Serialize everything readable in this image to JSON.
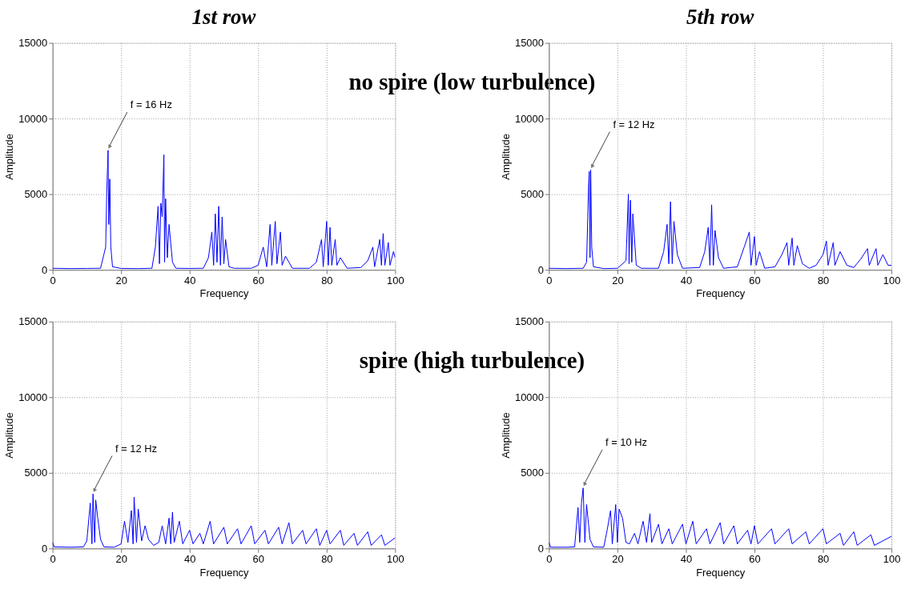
{
  "chart_data": [
    {
      "type": "line",
      "title": "1st row",
      "xlabel": "Frequency",
      "ylabel": "Amplitude",
      "xlim": [
        0,
        100
      ],
      "xticks": [
        0,
        20,
        40,
        60,
        80,
        100
      ],
      "ylim": [
        0,
        15000
      ],
      "yticks": [
        0,
        5000,
        10000,
        15000
      ],
      "grid": true,
      "annotations": [
        "no spire (low turbulence)",
        {
          "text": "f = 16 Hz",
          "x": 16.2,
          "y": 7900
        }
      ],
      "series": [
        {
          "color": "#0000ff",
          "x": [
            0,
            5,
            10,
            14,
            15.5,
            15.8,
            16,
            16.2,
            16.4,
            16.7,
            17,
            17.5,
            20,
            25,
            29,
            30,
            30.8,
            31.2,
            31.6,
            32,
            32.5,
            32.7,
            33,
            33.5,
            34,
            35,
            36,
            40,
            44,
            45.5,
            46.5,
            47,
            47.5,
            48,
            48.5,
            49,
            49.5,
            50,
            50.5,
            51.5,
            53,
            58,
            60,
            61.5,
            62.5,
            63.5,
            64,
            65,
            65.5,
            66.5,
            67,
            68,
            70,
            75,
            77,
            78.5,
            79,
            80,
            80.5,
            81,
            81.5,
            82.5,
            83,
            84,
            86,
            90,
            92,
            93.5,
            94,
            95.5,
            96,
            96.5,
            97,
            98,
            98.5,
            99.5,
            100
          ],
          "values": [
            100,
            80,
            90,
            100,
            1500,
            5000,
            6500,
            7900,
            3000,
            6000,
            1500,
            200,
            90,
            80,
            100,
            1500,
            4200,
            400,
            4400,
            3500,
            7600,
            500,
            4700,
            800,
            3000,
            500,
            100,
            90,
            100,
            800,
            2500,
            300,
            3700,
            500,
            4200,
            300,
            3500,
            400,
            2000,
            200,
            100,
            100,
            300,
            1500,
            200,
            3000,
            300,
            3200,
            400,
            2500,
            300,
            900,
            100,
            100,
            500,
            2000,
            200,
            3200,
            300,
            2800,
            300,
            2000,
            300,
            800,
            100,
            150,
            600,
            1500,
            200,
            2000,
            300,
            2400,
            300,
            1800,
            300,
            1200,
            800
          ]
        }
      ]
    },
    {
      "type": "line",
      "title": "5th row",
      "xlabel": "Frequency",
      "ylabel": "Amplitude",
      "xlim": [
        0,
        100
      ],
      "xticks": [
        0,
        20,
        40,
        60,
        80,
        100
      ],
      "ylim": [
        0,
        15000
      ],
      "yticks": [
        0,
        5000,
        10000,
        15000
      ],
      "grid": true,
      "annotations": [
        {
          "text": "f = 12 Hz",
          "x": 12.2,
          "y": 6600
        }
      ],
      "series": [
        {
          "color": "#0000ff",
          "x": [
            0,
            5,
            10,
            11,
            11.6,
            11.8,
            12,
            12.2,
            12.5,
            13,
            16,
            20,
            22.5,
            23.2,
            23.4,
            23.8,
            24.2,
            24.5,
            25.5,
            27,
            32,
            33.5,
            34.5,
            35,
            35.5,
            36,
            36.5,
            37.5,
            39,
            44,
            45.5,
            46.5,
            47,
            47.5,
            48,
            48.5,
            49.5,
            51,
            55,
            57,
            58.5,
            59,
            60,
            60.5,
            61.5,
            63,
            66,
            68,
            69.5,
            70,
            71,
            71.5,
            72.5,
            74,
            76,
            78,
            80,
            81,
            81.5,
            83,
            83.5,
            85,
            87,
            89,
            91,
            93,
            93.5,
            95.5,
            96,
            97.5,
            99,
            100
          ],
          "values": [
            100,
            80,
            100,
            500,
            5700,
            6500,
            800,
            6600,
            1500,
            200,
            80,
            100,
            600,
            5000,
            400,
            4600,
            500,
            3700,
            300,
            100,
            100,
            1200,
            3000,
            400,
            4500,
            400,
            3200,
            1000,
            100,
            150,
            1200,
            2800,
            300,
            4300,
            300,
            2600,
            800,
            100,
            200,
            1500,
            2500,
            300,
            2200,
            300,
            1200,
            100,
            200,
            1000,
            1800,
            300,
            2100,
            300,
            1600,
            400,
            100,
            300,
            1000,
            1900,
            300,
            1800,
            300,
            1200,
            300,
            150,
            700,
            1400,
            300,
            1400,
            300,
            1000,
            300,
            300
          ]
        }
      ]
    },
    {
      "type": "line",
      "xlabel": "Frequency",
      "ylabel": "Amplitude",
      "xlim": [
        0,
        100
      ],
      "xticks": [
        0,
        20,
        40,
        60,
        80,
        100
      ],
      "ylim": [
        0,
        15000
      ],
      "yticks": [
        0,
        5000,
        10000,
        15000
      ],
      "grid": true,
      "annotations": [
        "spire (high turbulence)",
        {
          "text": "f = 12 Hz",
          "x": 11.8,
          "y": 3600
        }
      ],
      "series": [
        {
          "color": "#0000ff",
          "x": [
            0,
            0.5,
            5,
            9,
            10,
            11,
            11.5,
            11.8,
            12.3,
            12.6,
            13.2,
            14,
            15,
            18,
            20,
            21,
            22,
            23,
            23.5,
            23.8,
            24.5,
            25,
            26,
            27,
            28,
            29.5,
            31,
            32,
            33,
            34,
            34.5,
            35,
            35.5,
            37,
            38,
            40,
            41,
            43,
            44,
            46,
            47,
            50,
            51,
            54,
            55,
            58,
            59,
            62,
            63,
            66,
            67,
            69,
            70,
            73,
            74,
            77,
            78,
            80,
            81,
            84,
            85,
            88,
            89,
            92,
            93,
            96,
            97,
            100
          ],
          "values": [
            400,
            100,
            80,
            100,
            500,
            3000,
            300,
            3600,
            400,
            3200,
            2000,
            600,
            100,
            80,
            300,
            1800,
            400,
            2500,
            300,
            3400,
            400,
            2600,
            500,
            1500,
            600,
            200,
            400,
            1500,
            300,
            2000,
            300,
            2400,
            400,
            1800,
            300,
            1200,
            300,
            1000,
            300,
            1800,
            300,
            1400,
            300,
            1300,
            300,
            1500,
            300,
            1200,
            300,
            1400,
            300,
            1700,
            300,
            1200,
            300,
            1300,
            200,
            1200,
            300,
            1200,
            200,
            1000,
            200,
            1100,
            200,
            900,
            200,
            700
          ]
        }
      ]
    },
    {
      "type": "line",
      "xlabel": "Frequency",
      "ylabel": "Amplitude",
      "xlim": [
        0,
        100
      ],
      "xticks": [
        0,
        20,
        40,
        60,
        80,
        100
      ],
      "ylim": [
        0,
        15000
      ],
      "yticks": [
        0,
        5000,
        10000,
        15000
      ],
      "grid": true,
      "annotations": [
        {
          "text": "f = 10 Hz",
          "x": 10,
          "y": 4000
        }
      ],
      "series": [
        {
          "color": "#0000ff",
          "x": [
            0,
            0.5,
            5,
            7.5,
            8.5,
            9,
            9.5,
            10,
            10.5,
            11,
            12,
            13,
            16,
            17,
            18,
            18.5,
            19.5,
            20,
            20.5,
            21.5,
            22.5,
            23.5,
            25,
            26,
            27.5,
            28.5,
            29.5,
            30,
            32,
            33,
            35,
            36,
            39,
            40,
            42,
            43,
            46,
            47,
            50,
            51,
            54,
            55,
            58,
            59,
            60,
            61,
            65,
            66,
            70,
            71,
            75,
            76,
            80,
            81,
            85,
            86,
            89,
            90,
            94,
            95,
            100
          ],
          "values": [
            400,
            80,
            80,
            100,
            2700,
            400,
            3000,
            4000,
            400,
            2900,
            600,
            100,
            80,
            1200,
            2500,
            300,
            2900,
            400,
            2600,
            2000,
            400,
            300,
            1000,
            300,
            1800,
            400,
            2300,
            400,
            1600,
            300,
            1300,
            300,
            1600,
            300,
            1800,
            300,
            1300,
            300,
            1700,
            300,
            1500,
            300,
            1200,
            300,
            1500,
            300,
            1300,
            300,
            1300,
            300,
            1100,
            300,
            1300,
            300,
            1000,
            200,
            1100,
            200,
            900,
            200,
            800
          ]
        }
      ]
    }
  ]
}
